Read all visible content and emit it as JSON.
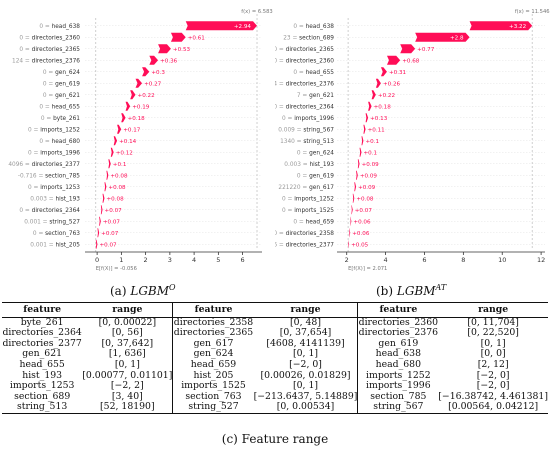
{
  "chart_data": [
    {
      "type": "waterfall",
      "panel": "a",
      "caption_label": "(a)",
      "caption_main": "LGBM",
      "caption_sup": "O",
      "fx_label": "f(x) = 6.583",
      "efx_label": "E[f(X)] = -0.056",
      "xlim": [
        -0.5,
        6.8
      ],
      "xticks": [
        0,
        1,
        2,
        3,
        4,
        5,
        6
      ],
      "start": -0.056,
      "features": [
        {
          "value": "0",
          "name": "head_638",
          "contribution": "+2.94",
          "v": 2.94
        },
        {
          "value": "0",
          "name": "directories_2360",
          "contribution": "+0.61",
          "v": 0.61
        },
        {
          "value": "0",
          "name": "directories_2365",
          "contribution": "+0.53",
          "v": 0.53
        },
        {
          "value": "124",
          "name": "directories_2376",
          "contribution": "+0.36",
          "v": 0.36
        },
        {
          "value": "0",
          "name": "gen_624",
          "contribution": "+0.3",
          "v": 0.3
        },
        {
          "value": "0",
          "name": "gen_619",
          "contribution": "+0.27",
          "v": 0.27
        },
        {
          "value": "0",
          "name": "gen_621",
          "contribution": "+0.22",
          "v": 0.22
        },
        {
          "value": "0",
          "name": "head_655",
          "contribution": "+0.19",
          "v": 0.19
        },
        {
          "value": "0",
          "name": "byte_261",
          "contribution": "+0.18",
          "v": 0.18
        },
        {
          "value": "0",
          "name": "imports_1252",
          "contribution": "+0.17",
          "v": 0.17
        },
        {
          "value": "0",
          "name": "head_680",
          "contribution": "+0.14",
          "v": 0.14
        },
        {
          "value": "0",
          "name": "imports_1996",
          "contribution": "+0.12",
          "v": 0.12
        },
        {
          "value": "4096",
          "name": "directories_2377",
          "contribution": "+0.1",
          "v": 0.1
        },
        {
          "value": "-0.716",
          "name": "section_785",
          "contribution": "+0.08",
          "v": 0.08
        },
        {
          "value": "0",
          "name": "imports_1253",
          "contribution": "+0.08",
          "v": 0.08
        },
        {
          "value": "0.003",
          "name": "hist_193",
          "contribution": "+0.08",
          "v": 0.08
        },
        {
          "value": "0",
          "name": "directories_2364",
          "contribution": "+0.07",
          "v": 0.07
        },
        {
          "value": "0.001",
          "name": "string_527",
          "contribution": "+0.07",
          "v": 0.07
        },
        {
          "value": "0",
          "name": "section_763",
          "contribution": "+0.07",
          "v": 0.07
        },
        {
          "value": "0.001",
          "name": "hist_205",
          "contribution": "+0.07",
          "v": 0.07
        }
      ]
    },
    {
      "type": "waterfall",
      "panel": "b",
      "caption_label": "(b)",
      "caption_main": "LGBM",
      "caption_sup": "AT",
      "fx_label": "f(x) = 11.546",
      "efx_label": "E[f(X)] = 2.071",
      "xlim": [
        1.5,
        12.2
      ],
      "xticks": [
        2,
        4,
        6,
        8,
        10,
        12
      ],
      "start": 2.071,
      "features": [
        {
          "value": "0",
          "name": "head_638",
          "contribution": "+3.22",
          "v": 3.22
        },
        {
          "value": "23",
          "name": "section_689",
          "contribution": "+2.8",
          "v": 2.8
        },
        {
          "value": "0",
          "name": "directories_2365",
          "contribution": "+0.77",
          "v": 0.77
        },
        {
          "value": "0",
          "name": "directories_2360",
          "contribution": "+0.68",
          "v": 0.68
        },
        {
          "value": "0",
          "name": "head_655",
          "contribution": "+0.31",
          "v": 0.31
        },
        {
          "value": "124",
          "name": "directories_2376",
          "contribution": "+0.26",
          "v": 0.26
        },
        {
          "value": "7",
          "name": "gen_621",
          "contribution": "+0.22",
          "v": 0.22
        },
        {
          "value": "0",
          "name": "directories_2364",
          "contribution": "+0.18",
          "v": 0.18
        },
        {
          "value": "0",
          "name": "imports_1996",
          "contribution": "+0.13",
          "v": 0.13
        },
        {
          "value": "0.009",
          "name": "string_567",
          "contribution": "+0.11",
          "v": 0.11
        },
        {
          "value": "1340",
          "name": "string_513",
          "contribution": "+0.1",
          "v": 0.1
        },
        {
          "value": "0",
          "name": "gen_624",
          "contribution": "+0.1",
          "v": 0.1
        },
        {
          "value": "0.003",
          "name": "hist_193",
          "contribution": "+0.09",
          "v": 0.09
        },
        {
          "value": "0",
          "name": "gen_619",
          "contribution": "+0.09",
          "v": 0.09
        },
        {
          "value": "221220",
          "name": "gen_617",
          "contribution": "+0.09",
          "v": 0.09
        },
        {
          "value": "0",
          "name": "imports_1252",
          "contribution": "+0.08",
          "v": 0.08
        },
        {
          "value": "0",
          "name": "imports_1525",
          "contribution": "+0.07",
          "v": 0.07
        },
        {
          "value": "0",
          "name": "head_659",
          "contribution": "+0.06",
          "v": 0.06
        },
        {
          "value": "0",
          "name": "directories_2358",
          "contribution": "+0.06",
          "v": 0.06
        },
        {
          "value": "4096",
          "name": "directories_2377",
          "contribution": "+0.05",
          "v": 0.05
        }
      ]
    },
    {
      "type": "table",
      "caption": "(c) Feature range",
      "header": [
        "feature",
        "range",
        "feature",
        "range",
        "feature",
        "range"
      ],
      "rows": [
        [
          "byte_261",
          "[0, 0.00022]",
          "directories_2358",
          "[0, 48]",
          "directories_2360",
          "[0, 11,704]"
        ],
        [
          "directories_2364",
          "[0, 56]",
          "directories_2365",
          "[0, 37,654]",
          "directories_2376",
          "[0, 22,520]"
        ],
        [
          "directories_2377",
          "[0, 37,642]",
          "gen_617",
          "[4608, 4141139]",
          "gen_619",
          "[0, 1]"
        ],
        [
          "gen_621",
          "[1, 636]",
          "gen_624",
          "[0, 1]",
          "head_638",
          "[0, 0]"
        ],
        [
          "head_655",
          "[0, 1]",
          "head_659",
          "[−2, 0]",
          "head_680",
          "[2, 12]"
        ],
        [
          "hist_193",
          "[0.00077, 0.01101]",
          "hist_205",
          "[0.00026, 0.01829]",
          "imports_1252",
          "[−2, 0]"
        ],
        [
          "imports_1253",
          "[−2, 2]",
          "imports_1525",
          "[0, 1]",
          "imports_1996",
          "[−2, 0]"
        ],
        [
          "section_689",
          "[3, 40]",
          "section_763",
          "[−213.6437, 5.14889]",
          "section_785",
          "[−16.38742, 4.461381]"
        ],
        [
          "string_513",
          "[52, 18190]",
          "string_527",
          "[0, 0.00534]",
          "string_567",
          "[0.00564, 0.04212]"
        ]
      ]
    }
  ]
}
